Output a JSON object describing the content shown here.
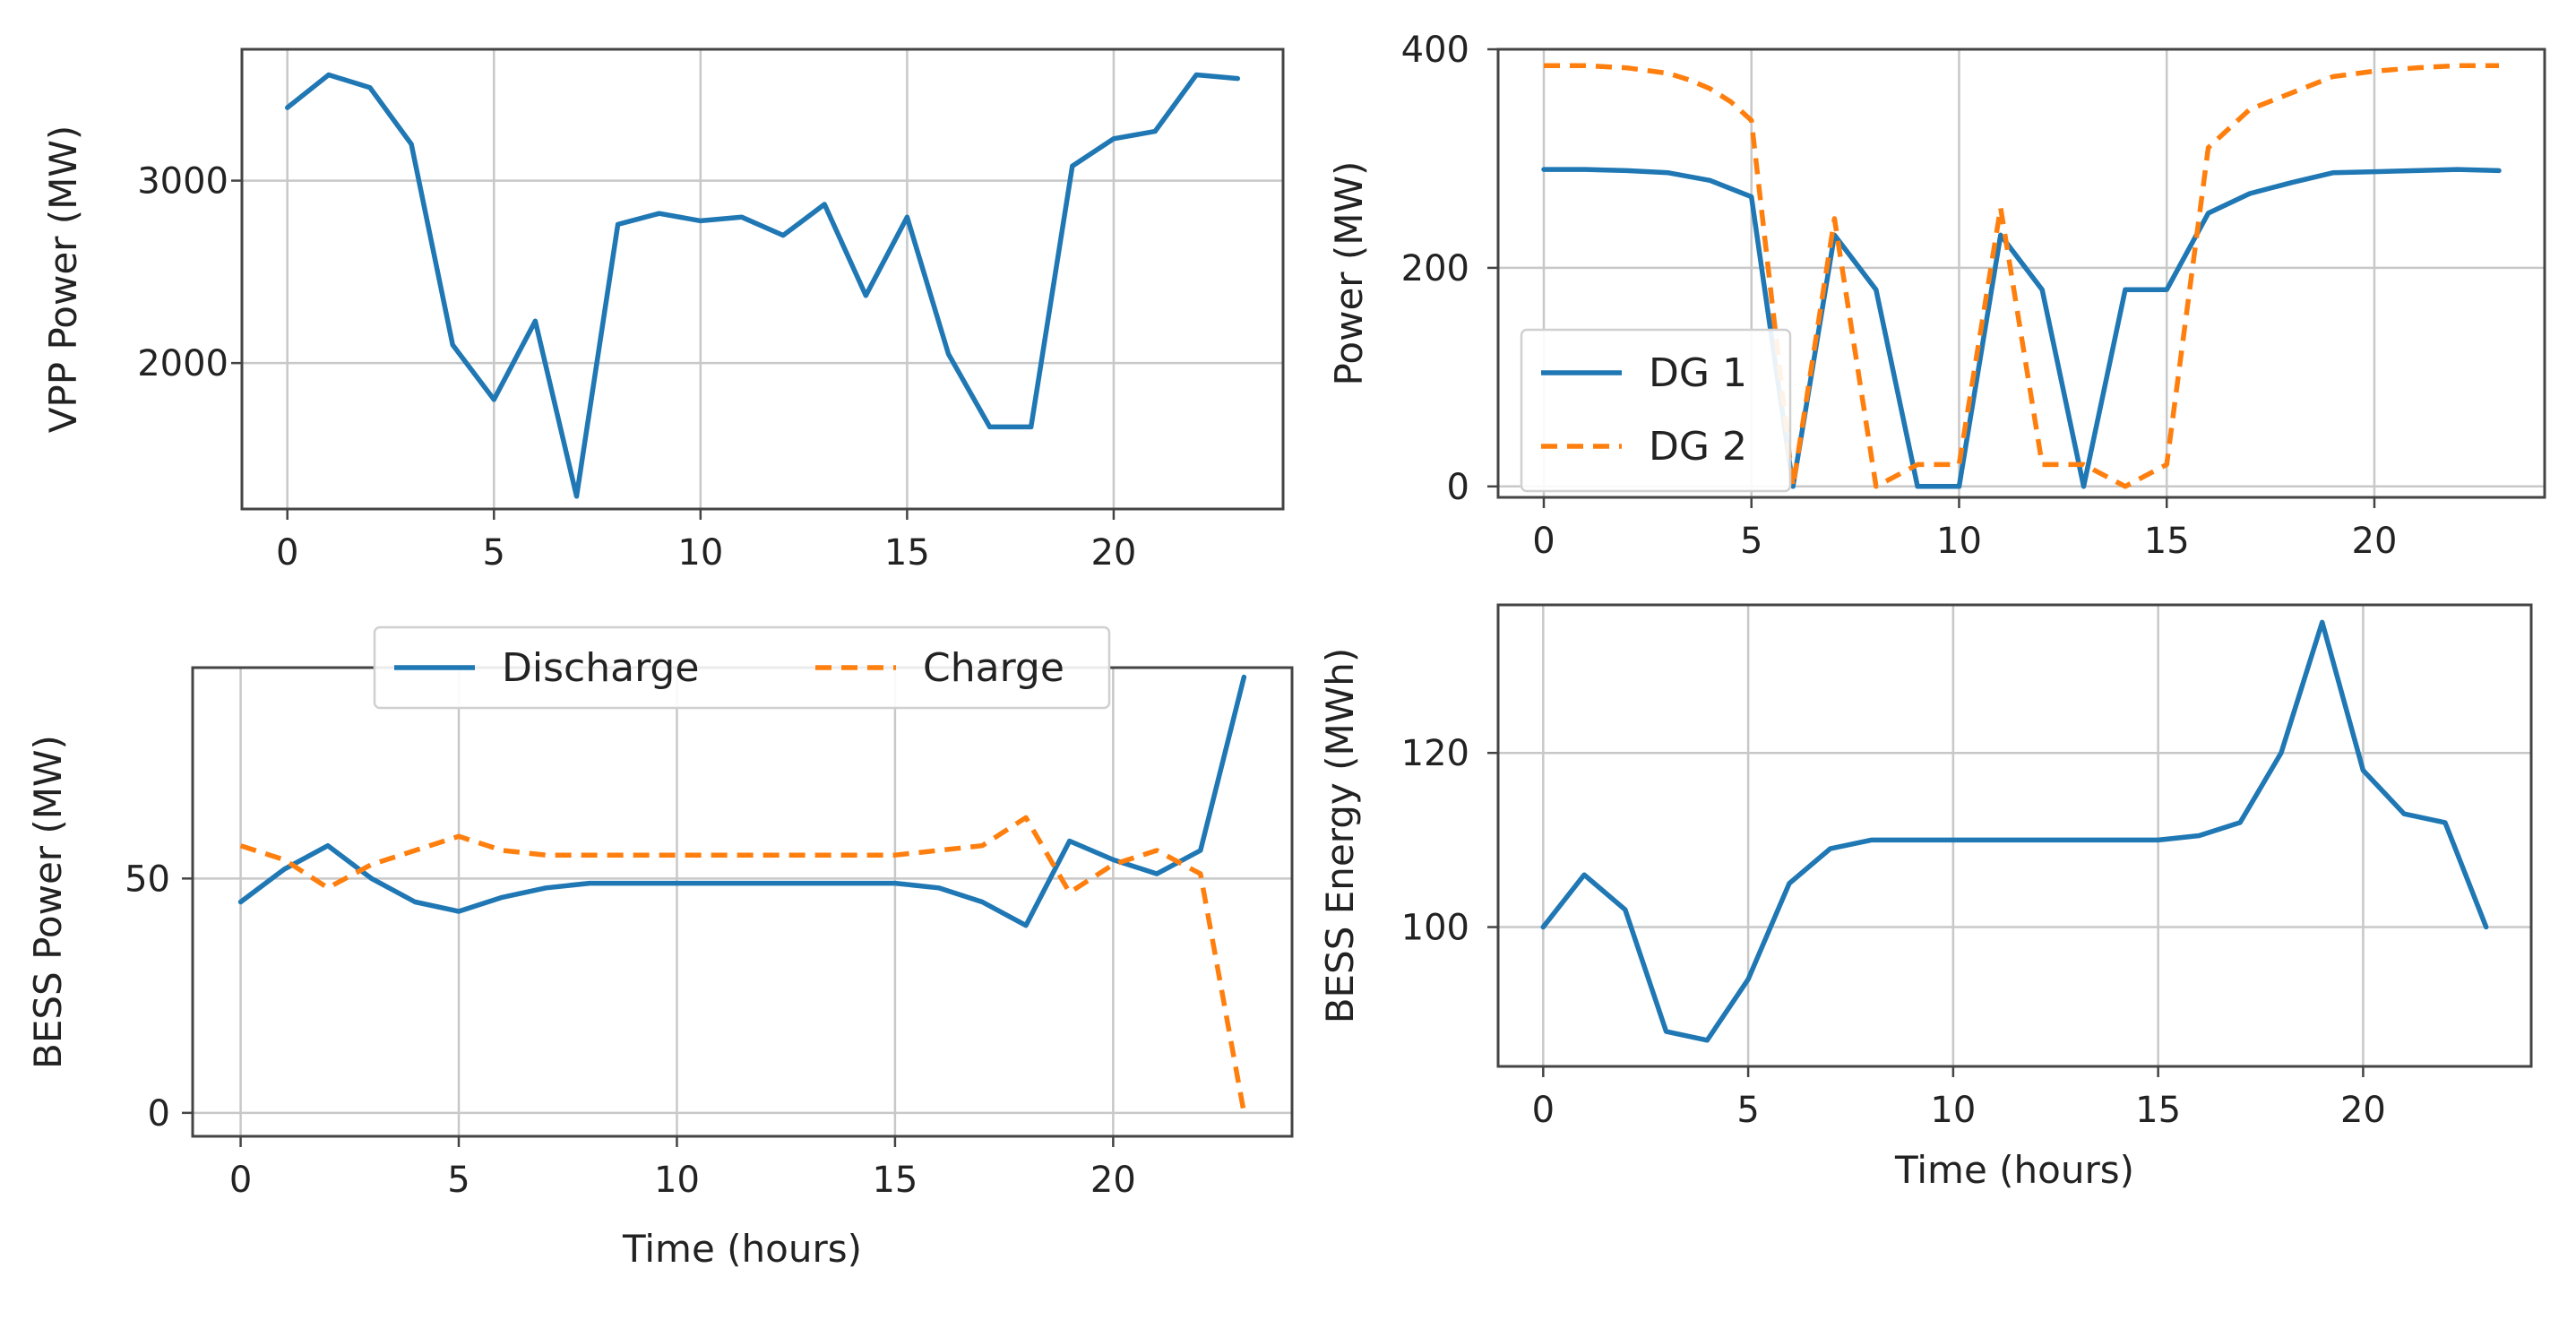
{
  "figure": {
    "colors": {
      "blue": "#1f77b4",
      "orange": "#ff7f0e",
      "grid": "#c8c8c8",
      "frame": "#444444"
    },
    "x_ticks": [
      0,
      5,
      10,
      15,
      20
    ]
  },
  "chart_data": [
    {
      "type": "line",
      "xlabel": "",
      "ylabel": "VPP Power (MW)",
      "ylim": [
        1200,
        3720
      ],
      "yticks": [
        2000,
        3000
      ],
      "x": [
        0,
        1,
        2,
        3,
        4,
        5,
        6,
        7,
        8,
        9,
        10,
        11,
        12,
        13,
        14,
        15,
        16,
        17,
        18,
        19,
        20,
        21,
        22,
        23
      ],
      "series": [
        {
          "name": "VPP Power",
          "style": "solid",
          "color": "#1f77b4",
          "values": [
            3400,
            3580,
            3510,
            3200,
            2100,
            1800,
            2230,
            1270,
            2760,
            2820,
            2780,
            2800,
            2700,
            2870,
            2370,
            2800,
            2050,
            1650,
            1650,
            3080,
            3230,
            3270,
            3580,
            3560
          ]
        }
      ],
      "legend": null
    },
    {
      "type": "line",
      "xlabel": "",
      "ylabel": "Power (MW)",
      "ylim": [
        -10,
        400
      ],
      "yticks": [
        0,
        200,
        400
      ],
      "x": [
        0,
        1,
        2,
        3,
        4,
        5,
        6,
        7,
        8,
        9,
        10,
        11,
        12,
        13,
        14,
        15,
        16,
        17,
        18,
        19,
        20,
        21,
        22,
        23
      ],
      "series": [
        {
          "name": "DG 1",
          "style": "solid",
          "color": "#1f77b4",
          "x": [
            0,
            1,
            2,
            3,
            4,
            5,
            6,
            7,
            8,
            9,
            10,
            11,
            12,
            13,
            14,
            15,
            16,
            17,
            18,
            19,
            20,
            21,
            22,
            23
          ],
          "values": [
            290,
            290,
            289,
            287,
            280,
            265,
            0,
            230,
            180,
            0,
            0,
            230,
            180,
            0,
            180,
            180,
            250,
            268,
            278,
            287,
            288,
            289,
            290,
            289
          ]
        },
        {
          "name": "DG 2",
          "style": "dashed",
          "color": "#ff7f0e",
          "x": [
            0,
            1,
            2,
            3,
            3.5,
            4,
            4.5,
            5,
            6,
            7,
            8,
            9,
            10,
            11,
            12,
            13,
            14,
            15,
            16,
            17,
            18,
            19,
            20,
            21,
            22,
            23
          ],
          "values": [
            385,
            385,
            383,
            378,
            372,
            364,
            352,
            335,
            0,
            245,
            0,
            20,
            20,
            255,
            20,
            20,
            0,
            20,
            310,
            345,
            360,
            375,
            380,
            383,
            385,
            385
          ]
        }
      ],
      "legend": {
        "position": "lower-left",
        "entries": [
          "DG 1",
          "DG 2"
        ]
      }
    },
    {
      "type": "line",
      "xlabel": "Time (hours)",
      "ylabel": "BESS Power (MW)",
      "ylim": [
        -5,
        95
      ],
      "yticks": [
        0,
        50
      ],
      "x": [
        0,
        1,
        2,
        3,
        4,
        5,
        6,
        7,
        8,
        9,
        10,
        11,
        12,
        13,
        14,
        15,
        16,
        17,
        18,
        19,
        20,
        21,
        22,
        23
      ],
      "series": [
        {
          "name": "Discharge",
          "style": "solid",
          "color": "#1f77b4",
          "values": [
            45,
            52,
            57,
            50,
            45,
            43,
            46,
            48,
            49,
            49,
            49,
            49,
            49,
            49,
            49,
            49,
            48,
            45,
            40,
            58,
            54,
            51,
            56,
            93
          ]
        },
        {
          "name": "Charge",
          "style": "dashed",
          "color": "#ff7f0e",
          "values": [
            57,
            54,
            48,
            53,
            56,
            59,
            56,
            55,
            55,
            55,
            55,
            55,
            55,
            55,
            55,
            55,
            56,
            57,
            63,
            47,
            53,
            56,
            51,
            0
          ]
        }
      ],
      "legend": {
        "position": "top-center",
        "entries": [
          "Discharge",
          "Charge"
        ]
      }
    },
    {
      "type": "line",
      "xlabel": "Time (hours)",
      "ylabel": "BESS Energy (MWh)",
      "ylim": [
        84,
        137
      ],
      "yticks": [
        100,
        120
      ],
      "x": [
        0,
        1,
        2,
        3,
        4,
        5,
        6,
        7,
        8,
        9,
        10,
        11,
        12,
        13,
        14,
        15,
        16,
        17,
        18,
        19,
        20,
        21,
        22,
        23
      ],
      "series": [
        {
          "name": "BESS Energy",
          "style": "solid",
          "color": "#1f77b4",
          "values": [
            100,
            106,
            102,
            88,
            87,
            94,
            105,
            109,
            110,
            110,
            110,
            110,
            110,
            110,
            110,
            110,
            110.5,
            112,
            120,
            135,
            118,
            113,
            112,
            100
          ]
        }
      ],
      "legend": null
    }
  ]
}
